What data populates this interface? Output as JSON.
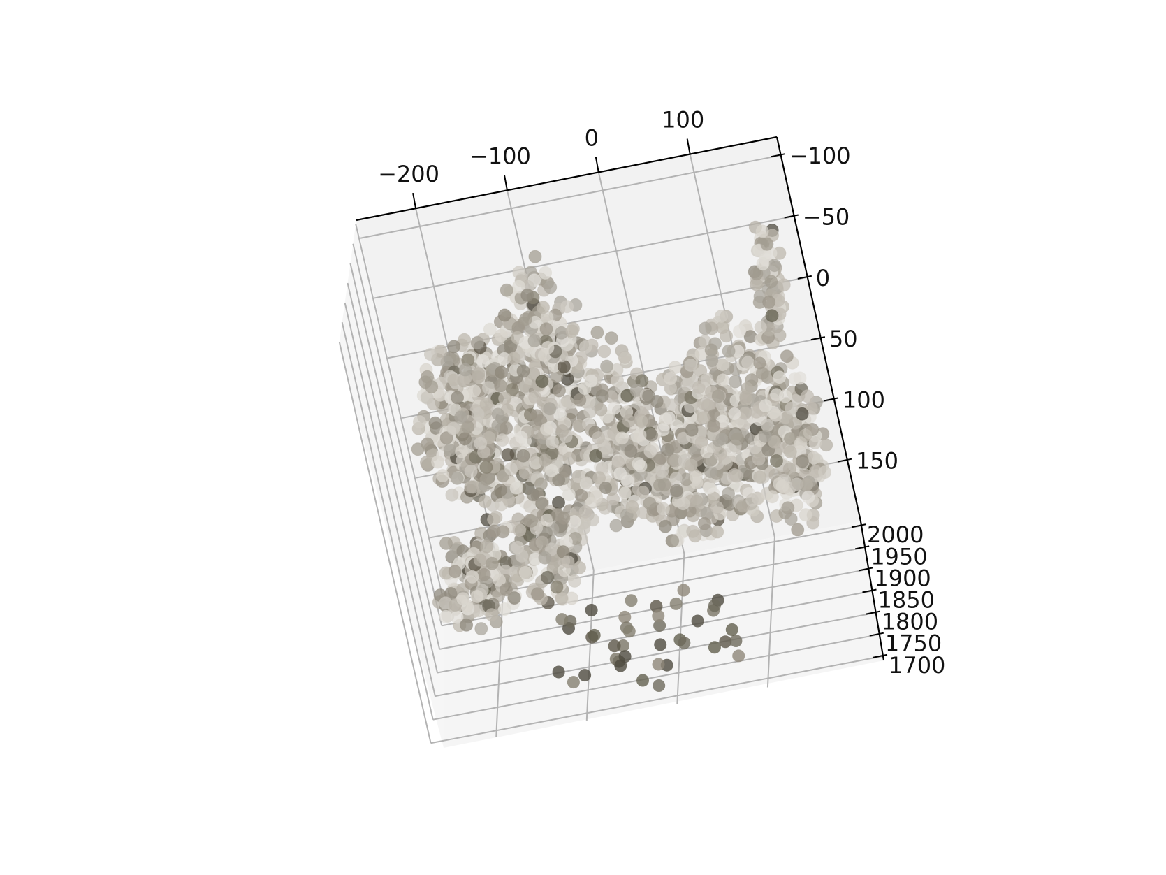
{
  "chart_data": {
    "type": "scatter",
    "projection": "3d",
    "title": "",
    "xlabel": "",
    "ylabel": "",
    "zlabel": "",
    "grid": true,
    "legend": false,
    "x_axis": {
      "ticks": [
        -200,
        -100,
        0,
        100
      ],
      "tick_labels": [
        "−200",
        "−100",
        "0",
        "100"
      ],
      "range": [
        -265,
        195
      ]
    },
    "y_axis": {
      "ticks": [
        -100,
        -50,
        0,
        50,
        100,
        150
      ],
      "tick_labels": [
        "−100",
        "−50",
        "0",
        "50",
        "100",
        "150"
      ],
      "range": [
        -115,
        200
      ]
    },
    "z_axis": {
      "ticks": [
        1700,
        1750,
        1800,
        1850,
        1900,
        1950,
        2000
      ],
      "tick_labels": [
        "1700",
        "1750",
        "1800",
        "1850",
        "1900",
        "1950",
        "2000"
      ],
      "range": [
        1690,
        2010
      ]
    },
    "subject_description": "point cloud of a small fluffy white dog",
    "point_colors": [
      "#c9c5bd",
      "#bdb8ae",
      "#d8d4cc",
      "#aaa69c",
      "#e2dfd9",
      "#b5b0a5",
      "#9d978b",
      "#cfcbc3",
      "#8f8a7e",
      "#dedbd4",
      "#c2bcb3",
      "#a39d92"
    ],
    "dark_point_colors": [
      "#6e6a5c",
      "#5c5648",
      "#7a7566",
      "#858070",
      "#63604f",
      "#4f4b40",
      "#8e8779"
    ],
    "point_opacity": 0.75,
    "points": [
      {
        "x": -210,
        "y": -20,
        "z": 1950,
        "c": 0
      },
      {
        "x": -190,
        "y": 0,
        "z": 1940,
        "c": 1
      },
      {
        "x": -170,
        "y": 10,
        "z": 1935,
        "c": 2
      },
      {
        "x": -150,
        "y": 30,
        "z": 1930,
        "c": 3
      },
      {
        "x": -130,
        "y": 50,
        "z": 1925,
        "c": 4
      },
      {
        "x": -110,
        "y": 70,
        "z": 1920,
        "c": 5
      },
      {
        "x": -90,
        "y": 80,
        "z": 1915,
        "c": 6
      },
      {
        "x": -70,
        "y": 90,
        "z": 1910,
        "c": 7
      },
      {
        "x": -50,
        "y": 95,
        "z": 1905,
        "c": 8
      },
      {
        "x": -30,
        "y": 100,
        "z": 1900,
        "c": 9
      },
      {
        "x": -10,
        "y": 100,
        "z": 1895,
        "c": 10
      },
      {
        "x": 10,
        "y": 95,
        "z": 1890,
        "c": 11
      },
      {
        "x": 30,
        "y": 90,
        "z": 1885,
        "c": 0
      },
      {
        "x": 50,
        "y": 80,
        "z": 1880,
        "c": 1
      },
      {
        "x": 70,
        "y": 70,
        "z": 1875,
        "c": 2
      },
      {
        "x": 90,
        "y": 60,
        "z": 1870,
        "c": 3
      },
      {
        "x": 110,
        "y": 40,
        "z": 1865,
        "c": 4
      },
      {
        "x": 130,
        "y": 20,
        "z": 1860,
        "c": 5
      },
      {
        "x": 150,
        "y": 0,
        "z": 1855,
        "c": 6
      },
      {
        "x": 160,
        "y": -30,
        "z": 1850,
        "c": 7
      }
    ]
  }
}
